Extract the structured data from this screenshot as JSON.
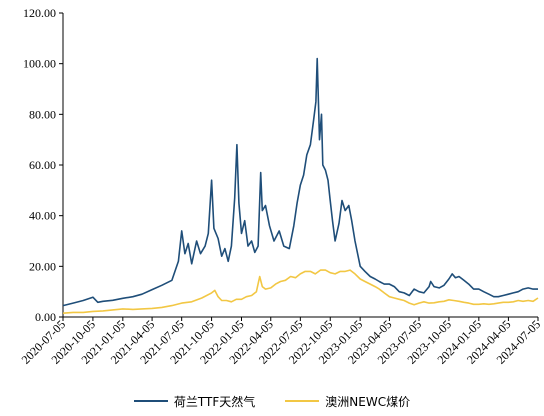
{
  "chart_data": {
    "type": "line",
    "title": "",
    "xlabel": "",
    "ylabel": "",
    "ylim": [
      0,
      120
    ],
    "yticks": [
      "0.00",
      "20.00",
      "40.00",
      "60.00",
      "80.00",
      "100.00",
      "120.00"
    ],
    "xticks": [
      "2020-07-05",
      "2020-10-05",
      "2021-01-05",
      "2021-04-05",
      "2021-07-05",
      "2021-10-05",
      "2022-01-05",
      "2022-04-05",
      "2022-07-05",
      "2022-10-05",
      "2023-01-05",
      "2023-04-05",
      "2023-07-05",
      "2023-10-05",
      "2024-01-05",
      "2024-04-05",
      "2024-07-05"
    ],
    "grid": false,
    "legend_position": "bottom",
    "series": [
      {
        "name": "荷兰TTF天然气",
        "color": "#1f4e79",
        "points": [
          [
            "2020-07-05",
            4.5
          ],
          [
            "2020-08-05",
            5.5
          ],
          [
            "2020-09-05",
            6.5
          ],
          [
            "2020-10-05",
            7.8
          ],
          [
            "2020-10-20",
            5.8
          ],
          [
            "2020-11-05",
            6.2
          ],
          [
            "2020-12-05",
            6.6
          ],
          [
            "2021-01-05",
            7.4
          ],
          [
            "2021-02-05",
            8.0
          ],
          [
            "2021-03-05",
            9.0
          ],
          [
            "2021-04-05",
            10.8
          ],
          [
            "2021-05-05",
            12.5
          ],
          [
            "2021-06-05",
            14.5
          ],
          [
            "2021-06-25",
            22.0
          ],
          [
            "2021-07-05",
            34.0
          ],
          [
            "2021-07-15",
            25.0
          ],
          [
            "2021-07-25",
            29.0
          ],
          [
            "2021-08-05",
            21.0
          ],
          [
            "2021-08-20",
            30.0
          ],
          [
            "2021-09-01",
            25.0
          ],
          [
            "2021-09-15",
            28.0
          ],
          [
            "2021-09-25",
            33.0
          ],
          [
            "2021-10-05",
            54.0
          ],
          [
            "2021-10-12",
            35.0
          ],
          [
            "2021-10-25",
            31.0
          ],
          [
            "2021-11-05",
            24.0
          ],
          [
            "2021-11-15",
            27.0
          ],
          [
            "2021-11-25",
            22.0
          ],
          [
            "2021-12-05",
            28.0
          ],
          [
            "2021-12-15",
            47.0
          ],
          [
            "2021-12-22",
            68.0
          ],
          [
            "2021-12-28",
            45.0
          ],
          [
            "2022-01-05",
            33.0
          ],
          [
            "2022-01-15",
            38.0
          ],
          [
            "2022-01-25",
            28.0
          ],
          [
            "2022-02-05",
            30.0
          ],
          [
            "2022-02-15",
            25.5
          ],
          [
            "2022-02-25",
            28.0
          ],
          [
            "2022-03-05",
            57.0
          ],
          [
            "2022-03-10",
            42.0
          ],
          [
            "2022-03-20",
            44.0
          ],
          [
            "2022-04-01",
            36.0
          ],
          [
            "2022-04-15",
            30.0
          ],
          [
            "2022-05-01",
            34.0
          ],
          [
            "2022-05-15",
            28.0
          ],
          [
            "2022-06-01",
            27.0
          ],
          [
            "2022-06-15",
            36.0
          ],
          [
            "2022-06-25",
            45.0
          ],
          [
            "2022-07-05",
            52.0
          ],
          [
            "2022-07-15",
            56.0
          ],
          [
            "2022-07-25",
            64.0
          ],
          [
            "2022-08-05",
            68.0
          ],
          [
            "2022-08-15",
            78.0
          ],
          [
            "2022-08-22",
            85.0
          ],
          [
            "2022-08-26",
            102.0
          ],
          [
            "2022-09-02",
            70.0
          ],
          [
            "2022-09-08",
            80.0
          ],
          [
            "2022-09-12",
            60.0
          ],
          [
            "2022-09-20",
            58.0
          ],
          [
            "2022-09-28",
            54.0
          ],
          [
            "2022-10-05",
            46.0
          ],
          [
            "2022-10-12",
            38.0
          ],
          [
            "2022-10-20",
            30.0
          ],
          [
            "2022-11-01",
            37.0
          ],
          [
            "2022-11-10",
            46.0
          ],
          [
            "2022-11-20",
            42.0
          ],
          [
            "2022-12-01",
            44.0
          ],
          [
            "2022-12-10",
            38.0
          ],
          [
            "2022-12-20",
            30.0
          ],
          [
            "2023-01-05",
            20.0
          ],
          [
            "2023-01-20",
            18.0
          ],
          [
            "2023-02-05",
            16.0
          ],
          [
            "2023-02-20",
            15.0
          ],
          [
            "2023-03-05",
            14.0
          ],
          [
            "2023-03-20",
            13.0
          ],
          [
            "2023-04-05",
            13.0
          ],
          [
            "2023-04-20",
            12.0
          ],
          [
            "2023-05-05",
            10.0
          ],
          [
            "2023-05-20",
            9.5
          ],
          [
            "2023-06-05",
            8.5
          ],
          [
            "2023-06-20",
            11.0
          ],
          [
            "2023-07-05",
            10.0
          ],
          [
            "2023-07-20",
            9.5
          ],
          [
            "2023-08-05",
            12.0
          ],
          [
            "2023-08-10",
            14.0
          ],
          [
            "2023-08-20",
            12.0
          ],
          [
            "2023-09-05",
            11.5
          ],
          [
            "2023-09-20",
            12.5
          ],
          [
            "2023-10-05",
            15.0
          ],
          [
            "2023-10-15",
            17.0
          ],
          [
            "2023-10-25",
            15.5
          ],
          [
            "2023-11-05",
            16.0
          ],
          [
            "2023-11-20",
            14.5
          ],
          [
            "2023-12-05",
            13.0
          ],
          [
            "2023-12-20",
            11.0
          ],
          [
            "2024-01-05",
            11.0
          ],
          [
            "2024-01-20",
            10.0
          ],
          [
            "2024-02-05",
            9.0
          ],
          [
            "2024-02-20",
            8.0
          ],
          [
            "2024-03-05",
            8.0
          ],
          [
            "2024-03-20",
            8.5
          ],
          [
            "2024-04-05",
            9.0
          ],
          [
            "2024-04-20",
            9.5
          ],
          [
            "2024-05-05",
            10.0
          ],
          [
            "2024-05-20",
            11.0
          ],
          [
            "2024-06-05",
            11.5
          ],
          [
            "2024-06-20",
            11.0
          ],
          [
            "2024-07-05",
            11.0
          ]
        ]
      },
      {
        "name": "澳洲NEWC煤价",
        "color": "#f2c744",
        "points": [
          [
            "2020-07-05",
            1.5
          ],
          [
            "2020-08-05",
            1.8
          ],
          [
            "2020-09-05",
            1.8
          ],
          [
            "2020-10-05",
            2.2
          ],
          [
            "2020-11-05",
            2.4
          ],
          [
            "2020-12-05",
            2.8
          ],
          [
            "2021-01-05",
            3.2
          ],
          [
            "2021-02-05",
            3.0
          ],
          [
            "2021-03-05",
            3.2
          ],
          [
            "2021-04-05",
            3.4
          ],
          [
            "2021-05-05",
            3.8
          ],
          [
            "2021-06-05",
            4.5
          ],
          [
            "2021-07-05",
            5.5
          ],
          [
            "2021-08-05",
            6.0
          ],
          [
            "2021-09-05",
            7.5
          ],
          [
            "2021-10-05",
            9.5
          ],
          [
            "2021-10-15",
            10.5
          ],
          [
            "2021-10-25",
            8.0
          ],
          [
            "2021-11-05",
            6.5
          ],
          [
            "2021-11-20",
            6.5
          ],
          [
            "2021-12-05",
            6.0
          ],
          [
            "2021-12-20",
            7.0
          ],
          [
            "2022-01-05",
            7.0
          ],
          [
            "2022-01-20",
            8.0
          ],
          [
            "2022-02-05",
            8.5
          ],
          [
            "2022-02-20",
            10.0
          ],
          [
            "2022-03-02",
            16.0
          ],
          [
            "2022-03-10",
            12.0
          ],
          [
            "2022-03-20",
            11.0
          ],
          [
            "2022-04-05",
            11.5
          ],
          [
            "2022-04-20",
            13.0
          ],
          [
            "2022-05-05",
            14.0
          ],
          [
            "2022-05-20",
            14.5
          ],
          [
            "2022-06-05",
            16.0
          ],
          [
            "2022-06-20",
            15.5
          ],
          [
            "2022-07-05",
            17.0
          ],
          [
            "2022-07-20",
            18.0
          ],
          [
            "2022-08-05",
            18.0
          ],
          [
            "2022-08-20",
            17.0
          ],
          [
            "2022-09-05",
            18.5
          ],
          [
            "2022-09-20",
            18.5
          ],
          [
            "2022-10-05",
            17.5
          ],
          [
            "2022-10-20",
            17.0
          ],
          [
            "2022-11-05",
            18.0
          ],
          [
            "2022-11-20",
            18.0
          ],
          [
            "2022-12-05",
            18.5
          ],
          [
            "2022-12-20",
            17.0
          ],
          [
            "2023-01-05",
            15.0
          ],
          [
            "2023-01-20",
            14.0
          ],
          [
            "2023-02-05",
            13.0
          ],
          [
            "2023-02-20",
            12.0
          ],
          [
            "2023-03-05",
            11.0
          ],
          [
            "2023-03-20",
            9.5
          ],
          [
            "2023-04-05",
            8.0
          ],
          [
            "2023-04-20",
            7.5
          ],
          [
            "2023-05-05",
            7.0
          ],
          [
            "2023-05-20",
            6.5
          ],
          [
            "2023-06-05",
            5.5
          ],
          [
            "2023-06-20",
            4.8
          ],
          [
            "2023-07-05",
            5.5
          ],
          [
            "2023-07-20",
            6.0
          ],
          [
            "2023-08-05",
            5.5
          ],
          [
            "2023-08-20",
            5.6
          ],
          [
            "2023-09-05",
            6.0
          ],
          [
            "2023-09-20",
            6.2
          ],
          [
            "2023-10-05",
            6.8
          ],
          [
            "2023-10-20",
            6.5
          ],
          [
            "2023-11-05",
            6.2
          ],
          [
            "2023-11-20",
            5.8
          ],
          [
            "2023-12-05",
            5.5
          ],
          [
            "2023-12-20",
            5.0
          ],
          [
            "2024-01-05",
            5.0
          ],
          [
            "2024-01-20",
            5.2
          ],
          [
            "2024-02-05",
            5.0
          ],
          [
            "2024-02-20",
            5.2
          ],
          [
            "2024-03-05",
            5.5
          ],
          [
            "2024-03-20",
            5.8
          ],
          [
            "2024-04-05",
            5.8
          ],
          [
            "2024-04-20",
            6.0
          ],
          [
            "2024-05-05",
            6.5
          ],
          [
            "2024-05-20",
            6.2
          ],
          [
            "2024-06-05",
            6.5
          ],
          [
            "2024-06-20",
            6.2
          ],
          [
            "2024-07-05",
            7.5
          ]
        ]
      }
    ]
  }
}
